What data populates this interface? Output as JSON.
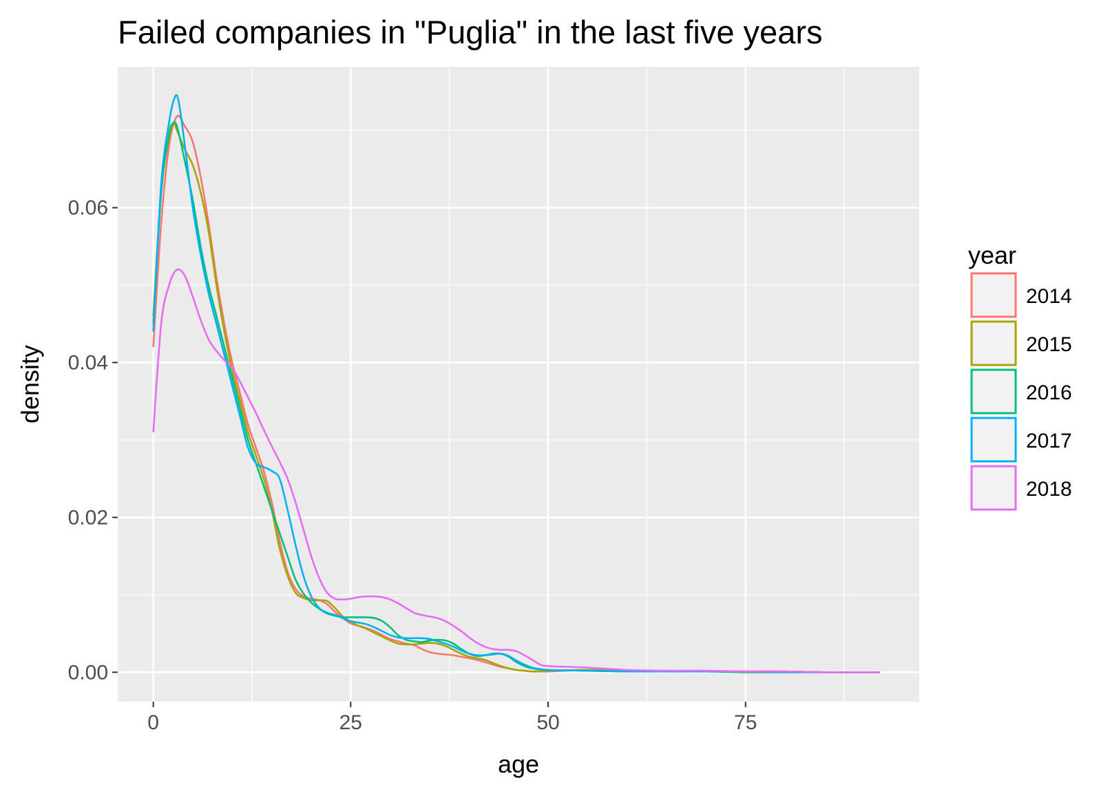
{
  "chart_data": {
    "type": "line",
    "title": "Failed companies in \"Puglia\" in the last five years",
    "xlabel": "age",
    "ylabel": "density",
    "xlim": [
      -4.5,
      97
    ],
    "ylim": [
      -0.0038,
      0.0782
    ],
    "x_ticks": [
      0,
      25,
      50,
      75
    ],
    "x_tick_labels": [
      "0",
      "25",
      "50",
      "75"
    ],
    "y_ticks": [
      0,
      0.02,
      0.04,
      0.06
    ],
    "y_tick_labels": [
      "0.00",
      "0.02",
      "0.04",
      "0.06"
    ],
    "grid": true,
    "legend": {
      "title": "year",
      "position": "right"
    },
    "series": [
      {
        "name": "2014",
        "color": "#F8766D",
        "x": [
          0,
          1,
          2,
          3,
          4,
          5,
          6,
          7,
          8,
          9,
          10,
          11,
          12,
          13,
          14,
          15,
          16,
          17,
          18,
          19,
          20,
          21,
          22,
          23,
          24,
          25,
          26,
          27,
          28,
          29,
          30,
          31,
          32,
          33,
          34,
          35,
          36,
          37,
          38,
          39,
          40,
          41,
          42,
          43,
          44,
          45,
          46,
          47,
          48,
          50,
          55,
          60,
          65,
          70,
          75,
          80,
          85,
          92
        ],
        "y": [
          0.042,
          0.058,
          0.068,
          0.0718,
          0.0705,
          0.0685,
          0.064,
          0.058,
          0.051,
          0.045,
          0.04,
          0.036,
          0.032,
          0.029,
          0.026,
          0.022,
          0.017,
          0.013,
          0.0108,
          0.0098,
          0.0095,
          0.0093,
          0.0088,
          0.0078,
          0.007,
          0.0063,
          0.006,
          0.0057,
          0.0053,
          0.0048,
          0.0043,
          0.004,
          0.0037,
          0.0035,
          0.003,
          0.0026,
          0.0024,
          0.0023,
          0.0022,
          0.002,
          0.0018,
          0.0016,
          0.0013,
          0.001,
          0.0007,
          0.0005,
          0.0003,
          0.0002,
          0.0001,
          0.0001,
          0.0003,
          0.0002,
          0.0001,
          0.0001,
          0.0001,
          0.0001,
          0.0,
          0.0
        ]
      },
      {
        "name": "2015",
        "color": "#A3A500",
        "x": [
          0,
          1,
          2,
          2.6,
          3,
          4,
          5,
          6,
          7,
          8,
          9,
          10,
          11,
          12,
          13,
          14,
          15,
          16,
          17,
          18,
          19,
          20,
          21,
          22,
          23,
          24,
          25,
          26,
          27,
          28,
          29,
          30,
          31,
          32,
          33,
          34,
          35,
          36,
          37,
          38,
          39,
          40,
          41,
          42,
          43,
          44,
          45,
          46,
          47,
          48,
          50,
          55,
          60,
          65,
          70,
          75,
          80,
          85,
          92
        ],
        "y": [
          0.046,
          0.062,
          0.069,
          0.0708,
          0.07,
          0.0675,
          0.0655,
          0.062,
          0.057,
          0.05,
          0.044,
          0.039,
          0.035,
          0.031,
          0.028,
          0.025,
          0.021,
          0.016,
          0.0125,
          0.0103,
          0.0096,
          0.0093,
          0.0093,
          0.0092,
          0.0083,
          0.0072,
          0.0065,
          0.006,
          0.0056,
          0.0051,
          0.0046,
          0.0041,
          0.0037,
          0.0036,
          0.0036,
          0.0037,
          0.0038,
          0.0037,
          0.0034,
          0.0029,
          0.0024,
          0.002,
          0.0018,
          0.0016,
          0.0012,
          0.0008,
          0.0005,
          0.0003,
          0.0002,
          0.0001,
          0.0002,
          0.0003,
          0.0002,
          0.0001,
          0.0001,
          0.0001,
          0.0001,
          0.0,
          0.0
        ]
      },
      {
        "name": "2016",
        "color": "#00BF7D",
        "x": [
          0,
          1,
          2,
          2.5,
          3,
          4,
          5,
          6,
          7,
          8,
          9,
          10,
          11,
          12,
          13,
          14,
          15,
          16,
          17,
          18,
          19,
          20,
          21,
          22,
          23,
          24,
          25,
          26,
          27,
          28,
          29,
          30,
          31,
          32,
          33,
          34,
          35,
          36,
          37,
          38,
          39,
          40,
          41,
          42,
          43,
          44,
          45,
          46,
          47,
          48,
          50,
          55,
          60,
          65,
          70,
          75,
          80,
          85,
          92
        ],
        "y": [
          0.045,
          0.062,
          0.0695,
          0.0709,
          0.0705,
          0.066,
          0.061,
          0.055,
          0.05,
          0.046,
          0.042,
          0.038,
          0.034,
          0.03,
          0.027,
          0.024,
          0.021,
          0.018,
          0.015,
          0.012,
          0.0102,
          0.009,
          0.0082,
          0.0076,
          0.0073,
          0.0071,
          0.0071,
          0.0071,
          0.0071,
          0.007,
          0.0066,
          0.0058,
          0.0048,
          0.0042,
          0.004,
          0.0039,
          0.0041,
          0.0042,
          0.0041,
          0.0037,
          0.003,
          0.0024,
          0.0021,
          0.0022,
          0.0024,
          0.0024,
          0.002,
          0.0013,
          0.0008,
          0.0005,
          0.0003,
          0.0002,
          0.0001,
          0.0001,
          0.0001,
          0.0,
          0.0,
          0.0,
          0.0
        ]
      },
      {
        "name": "2017",
        "color": "#00B0F6",
        "x": [
          0,
          1,
          2,
          2.7,
          3.2,
          4,
          5,
          6,
          7,
          8,
          9,
          10,
          11,
          12,
          13,
          14,
          15,
          16,
          17,
          18,
          19,
          20,
          21,
          22,
          23,
          24,
          25,
          26,
          27,
          28,
          29,
          30,
          31,
          32,
          33,
          34,
          35,
          36,
          37,
          38,
          39,
          40,
          41,
          42,
          43,
          44,
          45,
          46,
          47,
          48,
          50,
          55,
          60,
          65,
          70,
          75,
          80,
          85,
          92
        ],
        "y": [
          0.044,
          0.063,
          0.071,
          0.0742,
          0.0738,
          0.068,
          0.06,
          0.054,
          0.049,
          0.045,
          0.041,
          0.037,
          0.033,
          0.029,
          0.027,
          0.0265,
          0.026,
          0.025,
          0.021,
          0.0165,
          0.0125,
          0.0098,
          0.0083,
          0.0077,
          0.0074,
          0.007,
          0.0066,
          0.0064,
          0.0062,
          0.0058,
          0.0053,
          0.0048,
          0.0045,
          0.0044,
          0.0044,
          0.0044,
          0.0043,
          0.004,
          0.0037,
          0.0033,
          0.0028,
          0.0024,
          0.0022,
          0.0022,
          0.0023,
          0.0024,
          0.0021,
          0.0015,
          0.001,
          0.0006,
          0.0003,
          0.0002,
          0.0001,
          0.0001,
          0.0001,
          0.0001,
          0.0,
          0.0,
          0.0
        ]
      },
      {
        "name": "2018",
        "color": "#E76BF3",
        "x": [
          0,
          1,
          2,
          3,
          4,
          5,
          6,
          7,
          8,
          9,
          10,
          11,
          12,
          13,
          14,
          15,
          16,
          17,
          18,
          19,
          20,
          21,
          22,
          23,
          24,
          25,
          26,
          27,
          28,
          29,
          30,
          31,
          32,
          33,
          34,
          35,
          36,
          37,
          38,
          39,
          40,
          41,
          42,
          43,
          44,
          45,
          46,
          47,
          48,
          49,
          50,
          55,
          60,
          65,
          70,
          75,
          80,
          85,
          92
        ],
        "y": [
          0.031,
          0.045,
          0.05,
          0.052,
          0.0512,
          0.0485,
          0.0455,
          0.043,
          0.0415,
          0.0403,
          0.0393,
          0.0375,
          0.0355,
          0.0335,
          0.0313,
          0.0292,
          0.0272,
          0.025,
          0.022,
          0.0185,
          0.015,
          0.0122,
          0.0103,
          0.0095,
          0.0094,
          0.0095,
          0.0097,
          0.0098,
          0.0098,
          0.0097,
          0.0094,
          0.0089,
          0.0083,
          0.0077,
          0.0074,
          0.0072,
          0.007,
          0.0066,
          0.006,
          0.0053,
          0.0045,
          0.0038,
          0.0033,
          0.003,
          0.0029,
          0.0029,
          0.0027,
          0.0022,
          0.0016,
          0.001,
          0.0008,
          0.0006,
          0.0003,
          0.0002,
          0.0002,
          0.0001,
          0.0001,
          0.0,
          0.0
        ]
      }
    ]
  }
}
